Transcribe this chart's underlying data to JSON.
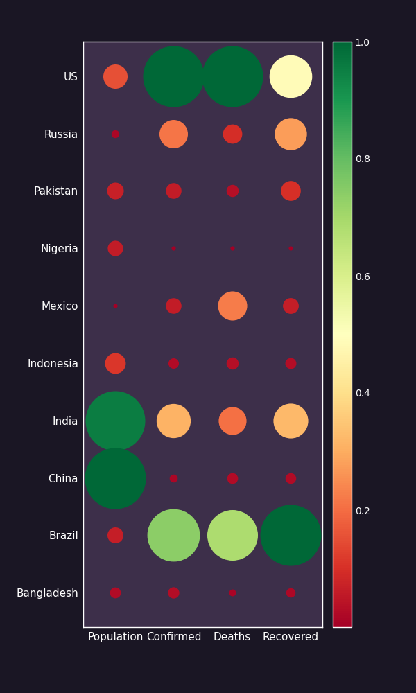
{
  "countries": [
    "US",
    "Russia",
    "Pakistan",
    "Nigeria",
    "Mexico",
    "Indonesia",
    "India",
    "China",
    "Brazil",
    "Bangladesh"
  ],
  "columns": [
    "Population",
    "Confirmed",
    "Deaths",
    "Recovered"
  ],
  "figure_bg": "#1a1624",
  "axes_bg": "#3d2f4a",
  "cmap": "RdYlGn",
  "colorbar_ticks": [
    0.2,
    0.4,
    0.6,
    0.8,
    1.0
  ],
  "raw_data": {
    "Population": [
      331000000,
      144500000,
      220892000,
      206139000,
      128932000,
      273524000,
      1380004000,
      1439323000,
      212559000,
      164689000
    ],
    "Confirmed": [
      3917420,
      862378,
      272788,
      36107,
      272408,
      130718,
      1239684,
      84017,
      2912212,
      151002
    ],
    "Deaths": [
      143144,
      14351,
      5765,
      800,
      32796,
      5765,
      29861,
      4634,
      98493,
      1926
    ],
    "Recovered": [
      1163947,
      663346,
      256665,
      18176,
      165602,
      84000,
      776362,
      79877,
      2374650,
      62581
    ]
  },
  "max_bubble_size": 4000,
  "min_bubble_size": 20,
  "fontsize_ticks": 11,
  "fontsize_colorbar": 10
}
